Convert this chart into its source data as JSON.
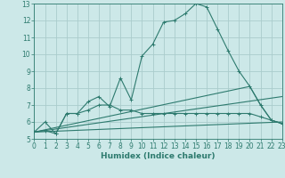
{
  "background_color": "#cce8e8",
  "grid_color": "#aacccc",
  "line_color": "#2d7a6e",
  "x_min": 0,
  "x_max": 23,
  "y_min": 5,
  "y_max": 13,
  "xlabel": "Humidex (Indice chaleur)",
  "xlabel_fontsize": 6.5,
  "tick_fontsize": 5.5,
  "series1_x": [
    0,
    1,
    2,
    3,
    4,
    5,
    6,
    7,
    8,
    9,
    10,
    11,
    12,
    13,
    14,
    15,
    16,
    17,
    18,
    19,
    20,
    21,
    22,
    23
  ],
  "series1_y": [
    5.4,
    6.0,
    5.3,
    6.5,
    6.5,
    7.2,
    7.5,
    6.9,
    8.6,
    7.3,
    9.9,
    10.6,
    11.9,
    12.0,
    12.4,
    13.0,
    12.8,
    11.5,
    10.2,
    9.0,
    8.1,
    7.0,
    6.1,
    5.9
  ],
  "series2_x": [
    0,
    1,
    2,
    3,
    4,
    5,
    6,
    7,
    8,
    9,
    10,
    11,
    12,
    13,
    14,
    15,
    16,
    17,
    18,
    19,
    20,
    21,
    22,
    23
  ],
  "series2_y": [
    5.4,
    5.5,
    5.3,
    6.5,
    6.5,
    6.7,
    7.0,
    7.0,
    6.7,
    6.7,
    6.5,
    6.5,
    6.5,
    6.5,
    6.5,
    6.5,
    6.5,
    6.5,
    6.5,
    6.5,
    6.5,
    6.3,
    6.1,
    5.9
  ],
  "series3_x": [
    0,
    20,
    21,
    22,
    23
  ],
  "series3_y": [
    5.4,
    8.1,
    7.0,
    6.1,
    5.9
  ],
  "series4_x": [
    0,
    23
  ],
  "series4_y": [
    5.4,
    7.5
  ],
  "series5_x": [
    0,
    23
  ],
  "series5_y": [
    5.4,
    6.0
  ]
}
